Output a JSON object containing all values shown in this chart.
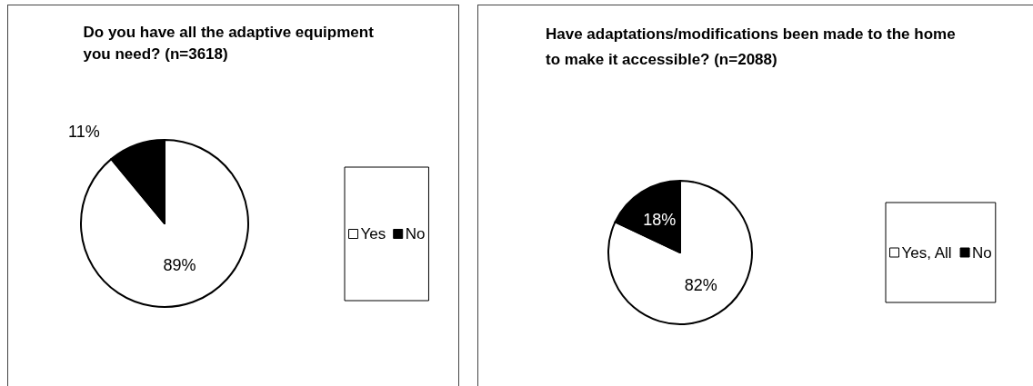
{
  "chart_data": [
    {
      "type": "pie",
      "title": "Do you have all the adaptive equipment you need? (n=3618)",
      "categories": [
        "Yes",
        "No"
      ],
      "values": [
        89,
        11
      ],
      "value_labels": [
        "89%",
        "11%"
      ],
      "colors": [
        "#ffffff",
        "#000000"
      ],
      "legend": "right"
    },
    {
      "type": "pie",
      "title": "Have adaptations/modifications been made to the home to make it accessible? (n=2088)",
      "categories": [
        "Yes, All",
        "No"
      ],
      "values": [
        82,
        18
      ],
      "value_labels": [
        "82%",
        "18%"
      ],
      "colors": [
        "#ffffff",
        "#000000"
      ],
      "legend": "right"
    }
  ]
}
